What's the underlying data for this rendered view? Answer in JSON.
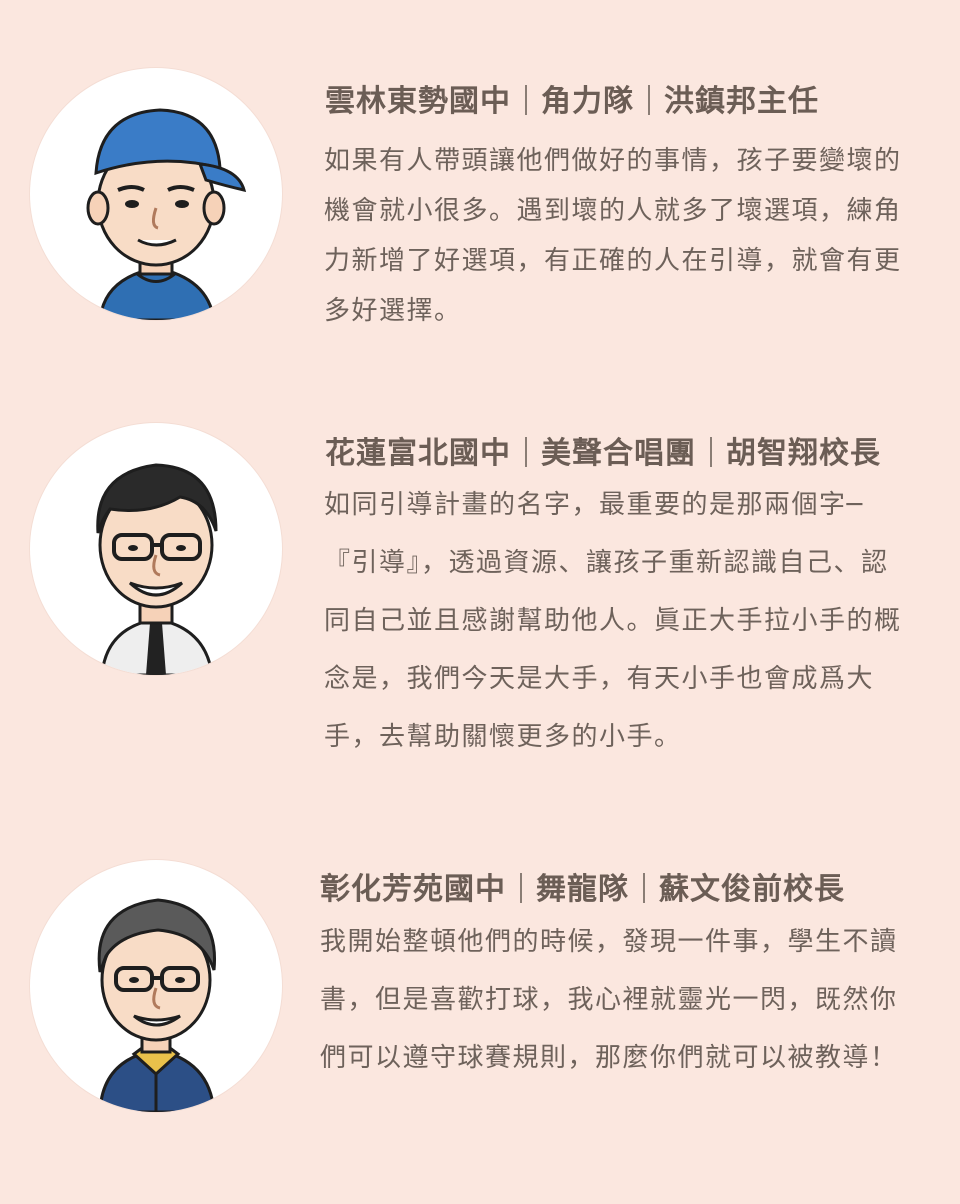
{
  "entries": [
    {
      "school": "雲林東勢國中",
      "team": "角力隊",
      "person": "洪鎮邦主任",
      "quote": "如果有人帶頭讓他們做好的事情，孩子要變壞的機會就小很多。遇到壞的人就多了壞選項，練角力新增了好選項，有正確的人在引導，就會有更多好選擇。",
      "avatar_icon": "man-blue-cap-avatar"
    },
    {
      "school": "花蓮富北國中",
      "team": "美聲合唱團",
      "person": "胡智翔校長",
      "quote": "如同引導計畫的名字，最重要的是那兩個字─『引導』，透過資源、讓孩子重新認識自己、認同自己並且感謝幫助他人。眞正大手拉小手的概念是，我們今天是大手，有天小手也會成爲大手，去幫助關懷更多的小手。",
      "avatar_icon": "man-glasses-tie-avatar"
    },
    {
      "school": "彰化芳苑國中",
      "team": "舞龍隊",
      "person": "蘇文俊前校長",
      "quote": "我開始整頓他們的時候，發現一件事，學生不讀書，但是喜歡打球，我心裡就靈光一閃，既然你們可以遵守球賽規則，那麼你們就可以被教導！",
      "avatar_icon": "man-glasses-jacket-avatar"
    }
  ],
  "colors": {
    "background": "#fbe7df",
    "heading": "#6b5d55",
    "text": "#6e625b"
  }
}
